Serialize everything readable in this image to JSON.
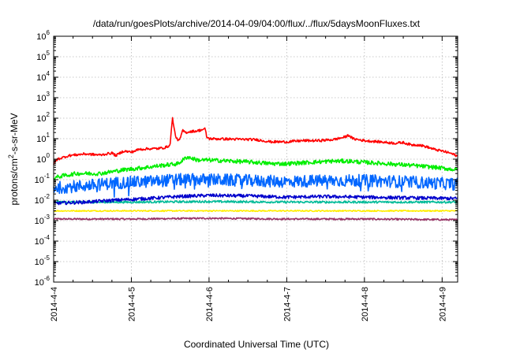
{
  "chart_data": {
    "type": "line",
    "title": "/data/run/goesPlots/archive/2014-04-09/04:00/flux/../flux/5daysMoonFluxes.txt",
    "xlabel": "Coordinated Universal Time (UTC)",
    "ylabel_parts": [
      "protons/cm",
      "2",
      "-s-sr-MeV"
    ],
    "y_scale": "log",
    "xlim_days": [
      0,
      5.2
    ],
    "ylim_exp": [
      -6,
      6
    ],
    "x_ticks": [
      {
        "label": "2014-4-4",
        "day": 0
      },
      {
        "label": "2014-4-5",
        "day": 1
      },
      {
        "label": "2014-4-6",
        "day": 2
      },
      {
        "label": "2014-4-7",
        "day": 3
      },
      {
        "label": "2014-4-8",
        "day": 4
      },
      {
        "label": "2014-4-9",
        "day": 5
      }
    ],
    "y_ticks": [
      {
        "base": "10",
        "exp": "6"
      },
      {
        "base": "10",
        "exp": "5"
      },
      {
        "base": "10",
        "exp": "4"
      },
      {
        "base": "10",
        "exp": "3"
      },
      {
        "base": "10",
        "exp": "2"
      },
      {
        "base": "10",
        "exp": "1"
      },
      {
        "base": "10",
        "exp": "0"
      },
      {
        "base": "10",
        "exp": "-1"
      },
      {
        "base": "10",
        "exp": "-2"
      },
      {
        "base": "10",
        "exp": "-3"
      },
      {
        "base": "10",
        "exp": "-4"
      },
      {
        "base": "10",
        "exp": "-5"
      },
      {
        "base": "10",
        "exp": "-6"
      }
    ],
    "grid": true,
    "legend": "none",
    "series": [
      {
        "color": "#ff0000",
        "noise": 0.06,
        "points": [
          [
            0,
            0.6
          ],
          [
            0.05,
            1.0
          ],
          [
            0.2,
            1.5
          ],
          [
            0.4,
            1.8
          ],
          [
            0.6,
            1.6
          ],
          [
            0.75,
            2.0
          ],
          [
            0.8,
            1.5
          ],
          [
            0.9,
            2.5
          ],
          [
            1.0,
            2.2
          ],
          [
            1.1,
            3.0
          ],
          [
            1.2,
            3.2
          ],
          [
            1.35,
            3.3
          ],
          [
            1.45,
            3.8
          ],
          [
            1.5,
            5.0
          ],
          [
            1.52,
            50.0
          ],
          [
            1.53,
            100.0
          ],
          [
            1.55,
            30.0
          ],
          [
            1.58,
            10.0
          ],
          [
            1.62,
            8.0
          ],
          [
            1.66,
            25.0
          ],
          [
            1.7,
            20.0
          ],
          [
            1.75,
            22.0
          ],
          [
            1.85,
            24.0
          ],
          [
            1.95,
            30.0
          ],
          [
            1.97,
            12.0
          ],
          [
            2.0,
            10.0
          ],
          [
            2.3,
            9.5
          ],
          [
            2.6,
            9.0
          ],
          [
            2.8,
            7.0
          ],
          [
            3.0,
            7.0
          ],
          [
            3.2,
            8.0
          ],
          [
            3.4,
            8.0
          ],
          [
            3.6,
            9.0
          ],
          [
            3.75,
            12.0
          ],
          [
            3.8,
            15.0
          ],
          [
            3.85,
            10.0
          ],
          [
            4.0,
            8.0
          ],
          [
            4.2,
            7.0
          ],
          [
            4.4,
            6.0
          ],
          [
            4.5,
            6.5
          ],
          [
            4.6,
            5.0
          ],
          [
            4.7,
            5.0
          ],
          [
            4.8,
            4.0
          ],
          [
            4.9,
            3.0
          ],
          [
            5.0,
            2.5
          ],
          [
            5.1,
            2.0
          ],
          [
            5.2,
            1.4
          ]
        ]
      },
      {
        "color": "#00ee00",
        "noise": 0.1,
        "points": [
          [
            0,
            0.12
          ],
          [
            0.1,
            0.15
          ],
          [
            0.3,
            0.2
          ],
          [
            0.6,
            0.2
          ],
          [
            0.9,
            0.3
          ],
          [
            1.2,
            0.4
          ],
          [
            1.4,
            0.5
          ],
          [
            1.6,
            0.6
          ],
          [
            1.72,
            1.3
          ],
          [
            1.85,
            0.9
          ],
          [
            2.0,
            0.9
          ],
          [
            2.3,
            0.8
          ],
          [
            2.6,
            0.7
          ],
          [
            2.8,
            0.6
          ],
          [
            3.0,
            0.6
          ],
          [
            3.3,
            0.7
          ],
          [
            3.6,
            0.8
          ],
          [
            3.8,
            0.8
          ],
          [
            4.0,
            0.7
          ],
          [
            4.3,
            0.6
          ],
          [
            4.6,
            0.5
          ],
          [
            4.9,
            0.4
          ],
          [
            5.2,
            0.3
          ]
        ]
      },
      {
        "color": "#0066ff",
        "noise": 0.3,
        "points": [
          [
            0,
            0.04
          ],
          [
            0.4,
            0.05
          ],
          [
            0.8,
            0.07
          ],
          [
            1.2,
            0.08
          ],
          [
            1.6,
            0.1
          ],
          [
            2.0,
            0.1
          ],
          [
            2.5,
            0.09
          ],
          [
            3.0,
            0.08
          ],
          [
            3.5,
            0.09
          ],
          [
            4.0,
            0.09
          ],
          [
            4.5,
            0.08
          ],
          [
            5.2,
            0.06
          ]
        ]
      },
      {
        "color": "#0000cc",
        "noise": 0.08,
        "points": [
          [
            0,
            0.007
          ],
          [
            0.4,
            0.008
          ],
          [
            0.8,
            0.01
          ],
          [
            1.2,
            0.012
          ],
          [
            1.6,
            0.015
          ],
          [
            2.0,
            0.017
          ],
          [
            2.5,
            0.016
          ],
          [
            3.0,
            0.014
          ],
          [
            3.5,
            0.015
          ],
          [
            4.0,
            0.014
          ],
          [
            4.5,
            0.013
          ],
          [
            5.2,
            0.012
          ]
        ]
      },
      {
        "color": "#00bb99",
        "noise": 0.05,
        "points": [
          [
            0,
            0.008
          ],
          [
            1.0,
            0.008
          ],
          [
            2.0,
            0.0085
          ],
          [
            3.0,
            0.008
          ],
          [
            4.0,
            0.008
          ],
          [
            5.2,
            0.008
          ]
        ]
      },
      {
        "color": "#ffee00",
        "noise": 0.03,
        "points": [
          [
            0,
            0.003
          ],
          [
            1.0,
            0.003
          ],
          [
            2.0,
            0.003
          ],
          [
            3.0,
            0.003
          ],
          [
            4.0,
            0.003
          ],
          [
            5.2,
            0.003
          ]
        ]
      },
      {
        "color": "#993366",
        "noise": 0.04,
        "points": [
          [
            0,
            0.0012
          ],
          [
            1.0,
            0.0012
          ],
          [
            2.0,
            0.0013
          ],
          [
            3.0,
            0.0012
          ],
          [
            4.0,
            0.0012
          ],
          [
            5.2,
            0.0011
          ]
        ]
      }
    ]
  }
}
